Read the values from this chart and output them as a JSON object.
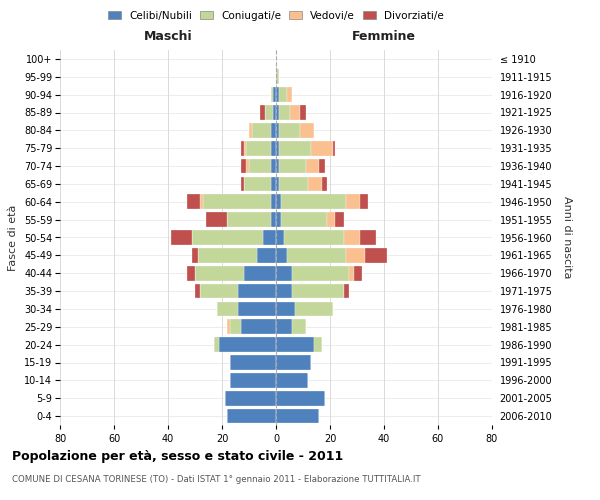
{
  "age_groups": [
    "0-4",
    "5-9",
    "10-14",
    "15-19",
    "20-24",
    "25-29",
    "30-34",
    "35-39",
    "40-44",
    "45-49",
    "50-54",
    "55-59",
    "60-64",
    "65-69",
    "70-74",
    "75-79",
    "80-84",
    "85-89",
    "90-94",
    "95-99",
    "100+"
  ],
  "birth_years": [
    "2006-2010",
    "2001-2005",
    "1996-2000",
    "1991-1995",
    "1986-1990",
    "1981-1985",
    "1976-1980",
    "1971-1975",
    "1966-1970",
    "1961-1965",
    "1956-1960",
    "1951-1955",
    "1946-1950",
    "1941-1945",
    "1936-1940",
    "1931-1935",
    "1926-1930",
    "1921-1925",
    "1916-1920",
    "1911-1915",
    "≤ 1910"
  ],
  "colors": {
    "celibi": "#4f81bd",
    "coniugati": "#c4d79b",
    "vedovi": "#fac090",
    "divorziati": "#c0504d"
  },
  "males": {
    "celibi": [
      18,
      19,
      17,
      17,
      21,
      13,
      14,
      14,
      12,
      7,
      5,
      2,
      2,
      2,
      2,
      2,
      2,
      1,
      1,
      0,
      0
    ],
    "coniugati": [
      0,
      0,
      0,
      0,
      2,
      4,
      8,
      14,
      18,
      22,
      26,
      16,
      25,
      10,
      8,
      9,
      7,
      3,
      1,
      0,
      0
    ],
    "vedovi": [
      0,
      0,
      0,
      0,
      0,
      1,
      0,
      0,
      0,
      0,
      0,
      0,
      1,
      0,
      1,
      1,
      1,
      0,
      0,
      0,
      0
    ],
    "divorziati": [
      0,
      0,
      0,
      0,
      0,
      0,
      0,
      2,
      3,
      2,
      8,
      8,
      5,
      1,
      2,
      1,
      0,
      2,
      0,
      0,
      0
    ]
  },
  "females": {
    "nubili": [
      16,
      18,
      12,
      13,
      14,
      6,
      7,
      6,
      6,
      4,
      3,
      2,
      2,
      1,
      1,
      1,
      1,
      1,
      1,
      0,
      0
    ],
    "coniugate": [
      0,
      0,
      0,
      0,
      3,
      5,
      14,
      19,
      21,
      22,
      22,
      17,
      24,
      11,
      10,
      12,
      8,
      4,
      3,
      1,
      0
    ],
    "vedove": [
      0,
      0,
      0,
      0,
      0,
      0,
      0,
      0,
      2,
      7,
      6,
      3,
      5,
      5,
      5,
      8,
      5,
      4,
      2,
      0,
      0
    ],
    "divorziate": [
      0,
      0,
      0,
      0,
      0,
      0,
      0,
      2,
      3,
      8,
      6,
      3,
      3,
      2,
      2,
      1,
      0,
      2,
      0,
      0,
      0
    ]
  },
  "xlim": 80,
  "title": "Popolazione per età, sesso e stato civile - 2011",
  "subtitle": "COMUNE DI CESANA TORINESE (TO) - Dati ISTAT 1° gennaio 2011 - Elaborazione TUTTITALIA.IT",
  "ylabel_left": "Fasce di età",
  "ylabel_right": "Anni di nascita",
  "xlabel_left": "Maschi",
  "xlabel_right": "Femmine",
  "legend_labels": [
    "Celibi/Nubili",
    "Coniugati/e",
    "Vedovi/e",
    "Divorziati/e"
  ],
  "bg_color": "#ffffff",
  "grid_color": "#cccccc"
}
